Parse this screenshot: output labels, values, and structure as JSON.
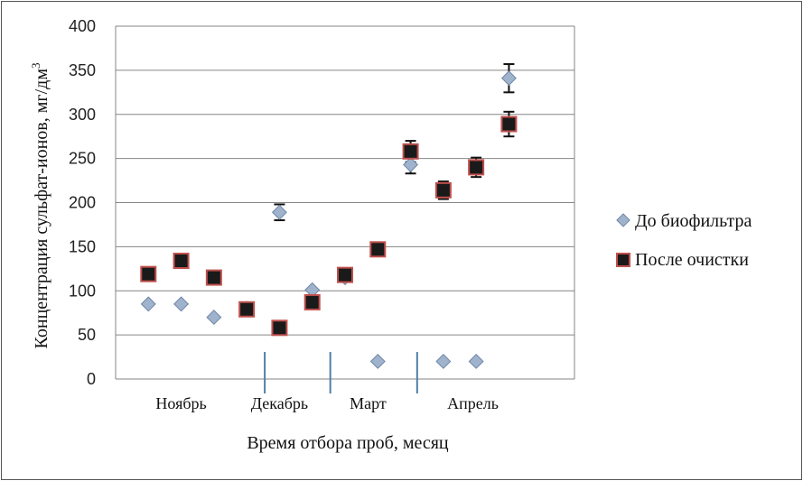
{
  "chart_data": {
    "type": "scatter",
    "title": "",
    "xlabel": "Время отбора проб, месяц",
    "ylabel": "Концентрация сульфат-ионов, мг/дм",
    "ylabel_sup": "3",
    "ylim": [
      0,
      400
    ],
    "yticks": [
      0,
      50,
      100,
      150,
      200,
      250,
      300,
      350,
      400
    ],
    "grid": "horizontal",
    "legend_position": "right",
    "months": [
      "Ноябрь",
      "Декабрь",
      "Март",
      "Апрель"
    ],
    "x": [
      1,
      2,
      3,
      4,
      5,
      6,
      7,
      8,
      9,
      10,
      11,
      12
    ],
    "series": [
      {
        "name": "До биофильтра",
        "marker": "diamond",
        "color": "#9fb3cd",
        "edge": "#6f86a6",
        "values": [
          85,
          85,
          70,
          80,
          189,
          101,
          115,
          20,
          243,
          20,
          20,
          341
        ],
        "errors": [
          null,
          null,
          null,
          null,
          9,
          null,
          null,
          null,
          10,
          null,
          null,
          16
        ]
      },
      {
        "name": "После очистки",
        "marker": "square",
        "color": "#1a1a1a",
        "edge": "#c0504d",
        "values": [
          119,
          134,
          115,
          79,
          58,
          87,
          118,
          147,
          258,
          214,
          240,
          289
        ],
        "errors": [
          null,
          null,
          null,
          null,
          null,
          null,
          null,
          null,
          12,
          10,
          11,
          14
        ]
      }
    ]
  }
}
